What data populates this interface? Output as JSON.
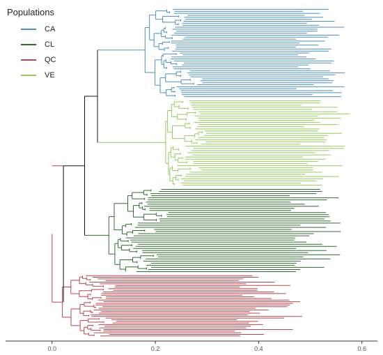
{
  "chart_data": {
    "type": "dendrogram",
    "legend": {
      "title": "Populations",
      "placement": "top-left",
      "entries": [
        {
          "label": "CA",
          "color": "#4a8fbd"
        },
        {
          "label": "CL",
          "color": "#2f6b2f"
        },
        {
          "label": "QC",
          "color": "#b5474d"
        },
        {
          "label": "VE",
          "color": "#92cc5a"
        }
      ]
    },
    "x_axis": {
      "ticks": [
        "0.0",
        "0.2",
        "0.4",
        "0.6"
      ],
      "range": [
        -0.09,
        0.63
      ]
    },
    "backbone_color": "#111111",
    "nodes": {
      "root": 0.0,
      "ca_ve": 0.088,
      "ca_ve_cl": 0.063,
      "ca_ve_cl_all": 0.022
    },
    "clades": [
      {
        "population": "CA",
        "leaves": 45,
        "root_height": 0.088,
        "stem_to": 0.18,
        "max_depth": 0.57,
        "min_depth": 0.47
      },
      {
        "population": "VE",
        "leaves": 40,
        "root_height": 0.088,
        "stem_to": 0.22,
        "max_depth": 0.58,
        "min_depth": 0.48
      },
      {
        "population": "CL",
        "leaves": 40,
        "root_height": 0.063,
        "stem_to": 0.11,
        "max_depth": 0.56,
        "min_depth": 0.46
      },
      {
        "population": "QC",
        "leaves": 38,
        "root_height": 0.0,
        "stem_to": 0.02,
        "max_depth": 0.49,
        "min_depth": 0.35
      }
    ]
  }
}
